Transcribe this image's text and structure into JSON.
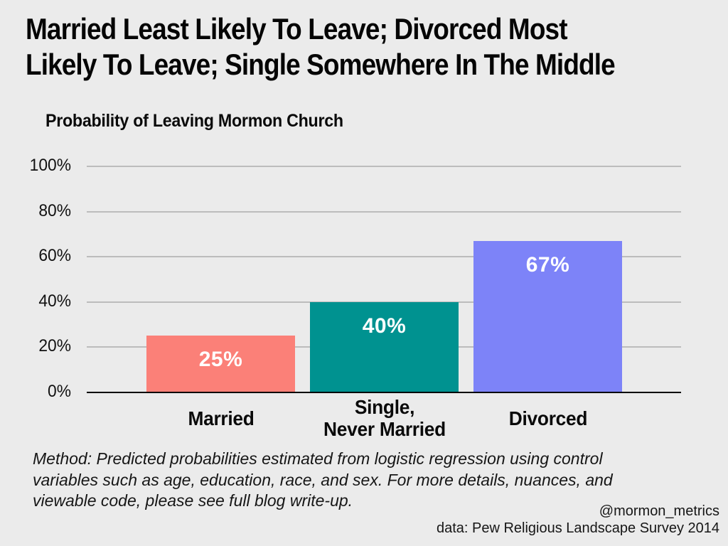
{
  "header": {
    "title_line1": "Married Least Likely To Leave; Divorced Most",
    "title_line2": "Likely To Leave; Single Somewhere In The Middle"
  },
  "chart_heading": "Probability of Leaving Mormon Church",
  "chart_data": {
    "type": "bar",
    "title": "Probability of Leaving Mormon Church",
    "categories": [
      "Married",
      "Single,\nNever Married",
      "Divorced"
    ],
    "values": [
      25,
      40,
      67
    ],
    "value_labels": [
      "25%",
      "40%",
      "67%"
    ],
    "bar_colors": [
      "#fb8078",
      "#009290",
      "#7d83f8"
    ],
    "xlabel": "",
    "ylabel": "",
    "ylim": [
      0,
      100
    ],
    "yticks": [
      "0%",
      "20%",
      "40%",
      "60%",
      "80%",
      "100%"
    ],
    "grid": true,
    "legend_position": "none"
  },
  "footnote": {
    "lines": [
      "Method: Predicted probabilities estimated from logistic regression using control",
      "variables such as age, education, race, and sex. For more details, nuances, and",
      "viewable code, please see full blog write-up."
    ]
  },
  "attribution": {
    "handle": "@mormon_metrics",
    "source": "data: Pew Religious Landscape Survey 2014"
  },
  "colors": {
    "background": "#ebebeb",
    "gridline": "#bcbcbc",
    "axis": "#000000",
    "text": "#0a0a0a",
    "bar_married": "#fb8078",
    "bar_single": "#009290",
    "bar_divorced": "#7d83f8",
    "bar_value_text": "#ffffff"
  }
}
